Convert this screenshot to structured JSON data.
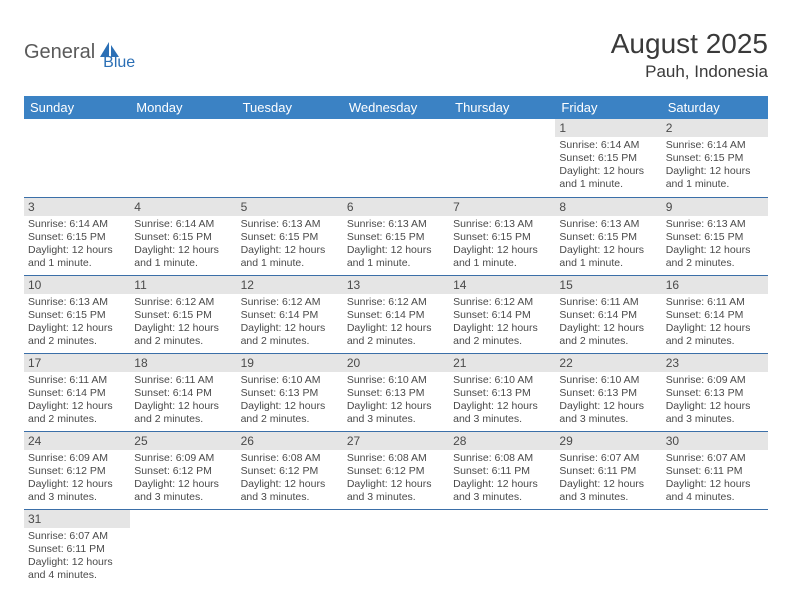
{
  "logo": {
    "word1": "General",
    "word2": "Blue"
  },
  "title": "August 2025",
  "location": "Pauh, Indonesia",
  "colors": {
    "header_bg": "#3b82c4",
    "header_text": "#ffffff",
    "daynum_bg": "#e5e5e5",
    "border": "#3b6fa8",
    "text": "#4a4a4a",
    "title_text": "#3a3a3a",
    "logo_gray": "#5a5a5a",
    "logo_blue": "#2b6fb5"
  },
  "weekdays": [
    "Sunday",
    "Monday",
    "Tuesday",
    "Wednesday",
    "Thursday",
    "Friday",
    "Saturday"
  ],
  "weeks": [
    [
      null,
      null,
      null,
      null,
      null,
      {
        "n": "1",
        "sr": "Sunrise: 6:14 AM",
        "ss": "Sunset: 6:15 PM",
        "dl1": "Daylight: 12 hours",
        "dl2": "and 1 minute."
      },
      {
        "n": "2",
        "sr": "Sunrise: 6:14 AM",
        "ss": "Sunset: 6:15 PM",
        "dl1": "Daylight: 12 hours",
        "dl2": "and 1 minute."
      }
    ],
    [
      {
        "n": "3",
        "sr": "Sunrise: 6:14 AM",
        "ss": "Sunset: 6:15 PM",
        "dl1": "Daylight: 12 hours",
        "dl2": "and 1 minute."
      },
      {
        "n": "4",
        "sr": "Sunrise: 6:14 AM",
        "ss": "Sunset: 6:15 PM",
        "dl1": "Daylight: 12 hours",
        "dl2": "and 1 minute."
      },
      {
        "n": "5",
        "sr": "Sunrise: 6:13 AM",
        "ss": "Sunset: 6:15 PM",
        "dl1": "Daylight: 12 hours",
        "dl2": "and 1 minute."
      },
      {
        "n": "6",
        "sr": "Sunrise: 6:13 AM",
        "ss": "Sunset: 6:15 PM",
        "dl1": "Daylight: 12 hours",
        "dl2": "and 1 minute."
      },
      {
        "n": "7",
        "sr": "Sunrise: 6:13 AM",
        "ss": "Sunset: 6:15 PM",
        "dl1": "Daylight: 12 hours",
        "dl2": "and 1 minute."
      },
      {
        "n": "8",
        "sr": "Sunrise: 6:13 AM",
        "ss": "Sunset: 6:15 PM",
        "dl1": "Daylight: 12 hours",
        "dl2": "and 1 minute."
      },
      {
        "n": "9",
        "sr": "Sunrise: 6:13 AM",
        "ss": "Sunset: 6:15 PM",
        "dl1": "Daylight: 12 hours",
        "dl2": "and 2 minutes."
      }
    ],
    [
      {
        "n": "10",
        "sr": "Sunrise: 6:13 AM",
        "ss": "Sunset: 6:15 PM",
        "dl1": "Daylight: 12 hours",
        "dl2": "and 2 minutes."
      },
      {
        "n": "11",
        "sr": "Sunrise: 6:12 AM",
        "ss": "Sunset: 6:15 PM",
        "dl1": "Daylight: 12 hours",
        "dl2": "and 2 minutes."
      },
      {
        "n": "12",
        "sr": "Sunrise: 6:12 AM",
        "ss": "Sunset: 6:14 PM",
        "dl1": "Daylight: 12 hours",
        "dl2": "and 2 minutes."
      },
      {
        "n": "13",
        "sr": "Sunrise: 6:12 AM",
        "ss": "Sunset: 6:14 PM",
        "dl1": "Daylight: 12 hours",
        "dl2": "and 2 minutes."
      },
      {
        "n": "14",
        "sr": "Sunrise: 6:12 AM",
        "ss": "Sunset: 6:14 PM",
        "dl1": "Daylight: 12 hours",
        "dl2": "and 2 minutes."
      },
      {
        "n": "15",
        "sr": "Sunrise: 6:11 AM",
        "ss": "Sunset: 6:14 PM",
        "dl1": "Daylight: 12 hours",
        "dl2": "and 2 minutes."
      },
      {
        "n": "16",
        "sr": "Sunrise: 6:11 AM",
        "ss": "Sunset: 6:14 PM",
        "dl1": "Daylight: 12 hours",
        "dl2": "and 2 minutes."
      }
    ],
    [
      {
        "n": "17",
        "sr": "Sunrise: 6:11 AM",
        "ss": "Sunset: 6:14 PM",
        "dl1": "Daylight: 12 hours",
        "dl2": "and 2 minutes."
      },
      {
        "n": "18",
        "sr": "Sunrise: 6:11 AM",
        "ss": "Sunset: 6:14 PM",
        "dl1": "Daylight: 12 hours",
        "dl2": "and 2 minutes."
      },
      {
        "n": "19",
        "sr": "Sunrise: 6:10 AM",
        "ss": "Sunset: 6:13 PM",
        "dl1": "Daylight: 12 hours",
        "dl2": "and 2 minutes."
      },
      {
        "n": "20",
        "sr": "Sunrise: 6:10 AM",
        "ss": "Sunset: 6:13 PM",
        "dl1": "Daylight: 12 hours",
        "dl2": "and 3 minutes."
      },
      {
        "n": "21",
        "sr": "Sunrise: 6:10 AM",
        "ss": "Sunset: 6:13 PM",
        "dl1": "Daylight: 12 hours",
        "dl2": "and 3 minutes."
      },
      {
        "n": "22",
        "sr": "Sunrise: 6:10 AM",
        "ss": "Sunset: 6:13 PM",
        "dl1": "Daylight: 12 hours",
        "dl2": "and 3 minutes."
      },
      {
        "n": "23",
        "sr": "Sunrise: 6:09 AM",
        "ss": "Sunset: 6:13 PM",
        "dl1": "Daylight: 12 hours",
        "dl2": "and 3 minutes."
      }
    ],
    [
      {
        "n": "24",
        "sr": "Sunrise: 6:09 AM",
        "ss": "Sunset: 6:12 PM",
        "dl1": "Daylight: 12 hours",
        "dl2": "and 3 minutes."
      },
      {
        "n": "25",
        "sr": "Sunrise: 6:09 AM",
        "ss": "Sunset: 6:12 PM",
        "dl1": "Daylight: 12 hours",
        "dl2": "and 3 minutes."
      },
      {
        "n": "26",
        "sr": "Sunrise: 6:08 AM",
        "ss": "Sunset: 6:12 PM",
        "dl1": "Daylight: 12 hours",
        "dl2": "and 3 minutes."
      },
      {
        "n": "27",
        "sr": "Sunrise: 6:08 AM",
        "ss": "Sunset: 6:12 PM",
        "dl1": "Daylight: 12 hours",
        "dl2": "and 3 minutes."
      },
      {
        "n": "28",
        "sr": "Sunrise: 6:08 AM",
        "ss": "Sunset: 6:11 PM",
        "dl1": "Daylight: 12 hours",
        "dl2": "and 3 minutes."
      },
      {
        "n": "29",
        "sr": "Sunrise: 6:07 AM",
        "ss": "Sunset: 6:11 PM",
        "dl1": "Daylight: 12 hours",
        "dl2": "and 3 minutes."
      },
      {
        "n": "30",
        "sr": "Sunrise: 6:07 AM",
        "ss": "Sunset: 6:11 PM",
        "dl1": "Daylight: 12 hours",
        "dl2": "and 4 minutes."
      }
    ],
    [
      {
        "n": "31",
        "sr": "Sunrise: 6:07 AM",
        "ss": "Sunset: 6:11 PM",
        "dl1": "Daylight: 12 hours",
        "dl2": "and 4 minutes."
      },
      null,
      null,
      null,
      null,
      null,
      null
    ]
  ]
}
